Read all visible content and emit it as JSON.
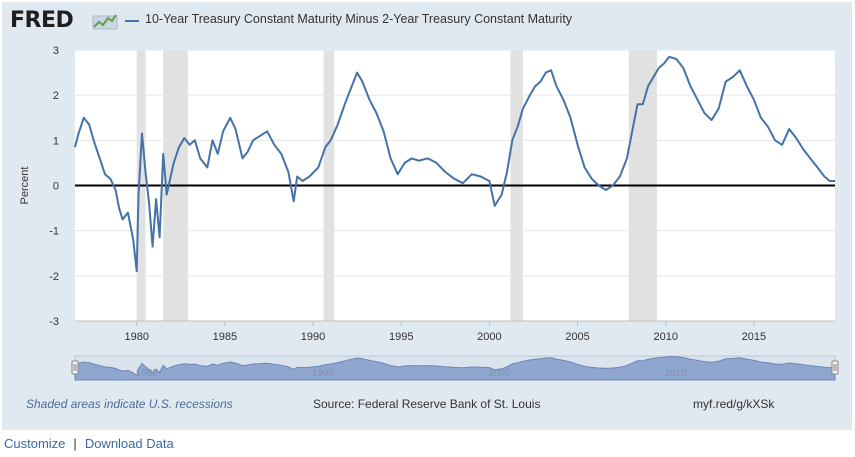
{
  "header": {
    "logo_text": "FRED",
    "logo_icon": "fred-sparkline-icon",
    "series_title": "10-Year Treasury Constant Maturity Minus 2-Year Treasury Constant Maturity"
  },
  "footer": {
    "recession_note": "Shaded areas indicate U.S. recessions",
    "source": "Source: Federal Reserve Bank of St. Louis",
    "short_url": "myf.red/g/kXSk"
  },
  "links": {
    "customize": "Customize",
    "separator": "|",
    "download": "Download Data"
  },
  "colors": {
    "series": "#4572a7",
    "recession": "#e1e1e1",
    "panel": "#e1e9f0",
    "navigator": "#8fa6cf"
  },
  "chart_data": {
    "type": "line",
    "ylabel": "Percent",
    "xlim": [
      1976.5,
      2019.6
    ],
    "ylim": [
      -3,
      3
    ],
    "yticks": [
      -3,
      -2,
      -1,
      0,
      1,
      2,
      3
    ],
    "xticks": [
      1980,
      1985,
      1990,
      1995,
      2000,
      2005,
      2010,
      2015
    ],
    "navigator_ticks": [
      1980,
      1990,
      2000,
      2010
    ],
    "recessions": [
      [
        1980.0,
        1980.5
      ],
      [
        1981.5,
        1982.9
      ],
      [
        1990.6,
        1991.2
      ],
      [
        2001.2,
        2001.9
      ],
      [
        2007.9,
        2009.5
      ]
    ],
    "series": [
      {
        "name": "10-Year Treasury Constant Maturity Minus 2-Year Treasury Constant Maturity",
        "x": [
          1976.5,
          1976.7,
          1977.0,
          1977.3,
          1977.6,
          1977.9,
          1978.2,
          1978.5,
          1978.8,
          1979.0,
          1979.2,
          1979.5,
          1979.8,
          1980.0,
          1980.1,
          1980.3,
          1980.5,
          1980.7,
          1980.9,
          1981.1,
          1981.3,
          1981.5,
          1981.7,
          1981.9,
          1982.1,
          1982.4,
          1982.7,
          1983.0,
          1983.3,
          1983.6,
          1984.0,
          1984.3,
          1984.6,
          1984.9,
          1985.3,
          1985.6,
          1986.0,
          1986.3,
          1986.6,
          1987.0,
          1987.4,
          1987.8,
          1988.2,
          1988.6,
          1988.9,
          1989.1,
          1989.4,
          1989.8,
          1990.3,
          1990.7,
          1991.0,
          1991.4,
          1991.8,
          1992.2,
          1992.5,
          1992.8,
          1993.2,
          1993.6,
          1994.0,
          1994.4,
          1994.8,
          1995.2,
          1995.6,
          1996.0,
          1996.5,
          1997.0,
          1997.5,
          1998.0,
          1998.5,
          1999.0,
          1999.5,
          2000.0,
          2000.3,
          2000.7,
          2001.0,
          2001.3,
          2001.6,
          2001.9,
          2002.3,
          2002.6,
          2002.9,
          2003.2,
          2003.5,
          2003.8,
          2004.2,
          2004.6,
          2005.0,
          2005.4,
          2005.8,
          2006.2,
          2006.6,
          2007.0,
          2007.4,
          2007.8,
          2008.1,
          2008.4,
          2008.7,
          2009.0,
          2009.3,
          2009.6,
          2009.9,
          2010.2,
          2010.6,
          2011.0,
          2011.4,
          2011.8,
          2012.2,
          2012.6,
          2013.0,
          2013.4,
          2013.8,
          2014.2,
          2014.6,
          2015.0,
          2015.4,
          2015.8,
          2016.2,
          2016.6,
          2017.0,
          2017.4,
          2017.8,
          2018.2,
          2018.6,
          2019.0,
          2019.3,
          2019.6
        ],
        "values": [
          0.85,
          1.15,
          1.5,
          1.35,
          0.95,
          0.6,
          0.25,
          0.15,
          -0.1,
          -0.5,
          -0.75,
          -0.6,
          -1.2,
          -1.9,
          -0.2,
          1.15,
          0.3,
          -0.4,
          -1.35,
          -0.3,
          -1.15,
          0.7,
          -0.2,
          0.15,
          0.5,
          0.85,
          1.05,
          0.9,
          1.0,
          0.6,
          0.4,
          1.0,
          0.7,
          1.2,
          1.5,
          1.25,
          0.6,
          0.75,
          1.0,
          1.1,
          1.2,
          0.9,
          0.7,
          0.3,
          -0.35,
          0.2,
          0.1,
          0.2,
          0.4,
          0.85,
          1.0,
          1.35,
          1.8,
          2.2,
          2.5,
          2.3,
          1.9,
          1.6,
          1.2,
          0.6,
          0.25,
          0.5,
          0.6,
          0.55,
          0.6,
          0.5,
          0.3,
          0.15,
          0.05,
          0.25,
          0.2,
          0.1,
          -0.45,
          -0.2,
          0.3,
          1.0,
          1.3,
          1.7,
          2.0,
          2.2,
          2.3,
          2.5,
          2.55,
          2.2,
          1.9,
          1.5,
          0.9,
          0.4,
          0.15,
          0.0,
          -0.1,
          0.0,
          0.2,
          0.6,
          1.2,
          1.8,
          1.8,
          2.2,
          2.4,
          2.6,
          2.7,
          2.85,
          2.8,
          2.6,
          2.2,
          1.9,
          1.6,
          1.45,
          1.7,
          2.3,
          2.4,
          2.55,
          2.2,
          1.9,
          1.5,
          1.3,
          1.0,
          0.9,
          1.25,
          1.05,
          0.8,
          0.6,
          0.4,
          0.2,
          0.1,
          0.1
        ]
      }
    ]
  }
}
